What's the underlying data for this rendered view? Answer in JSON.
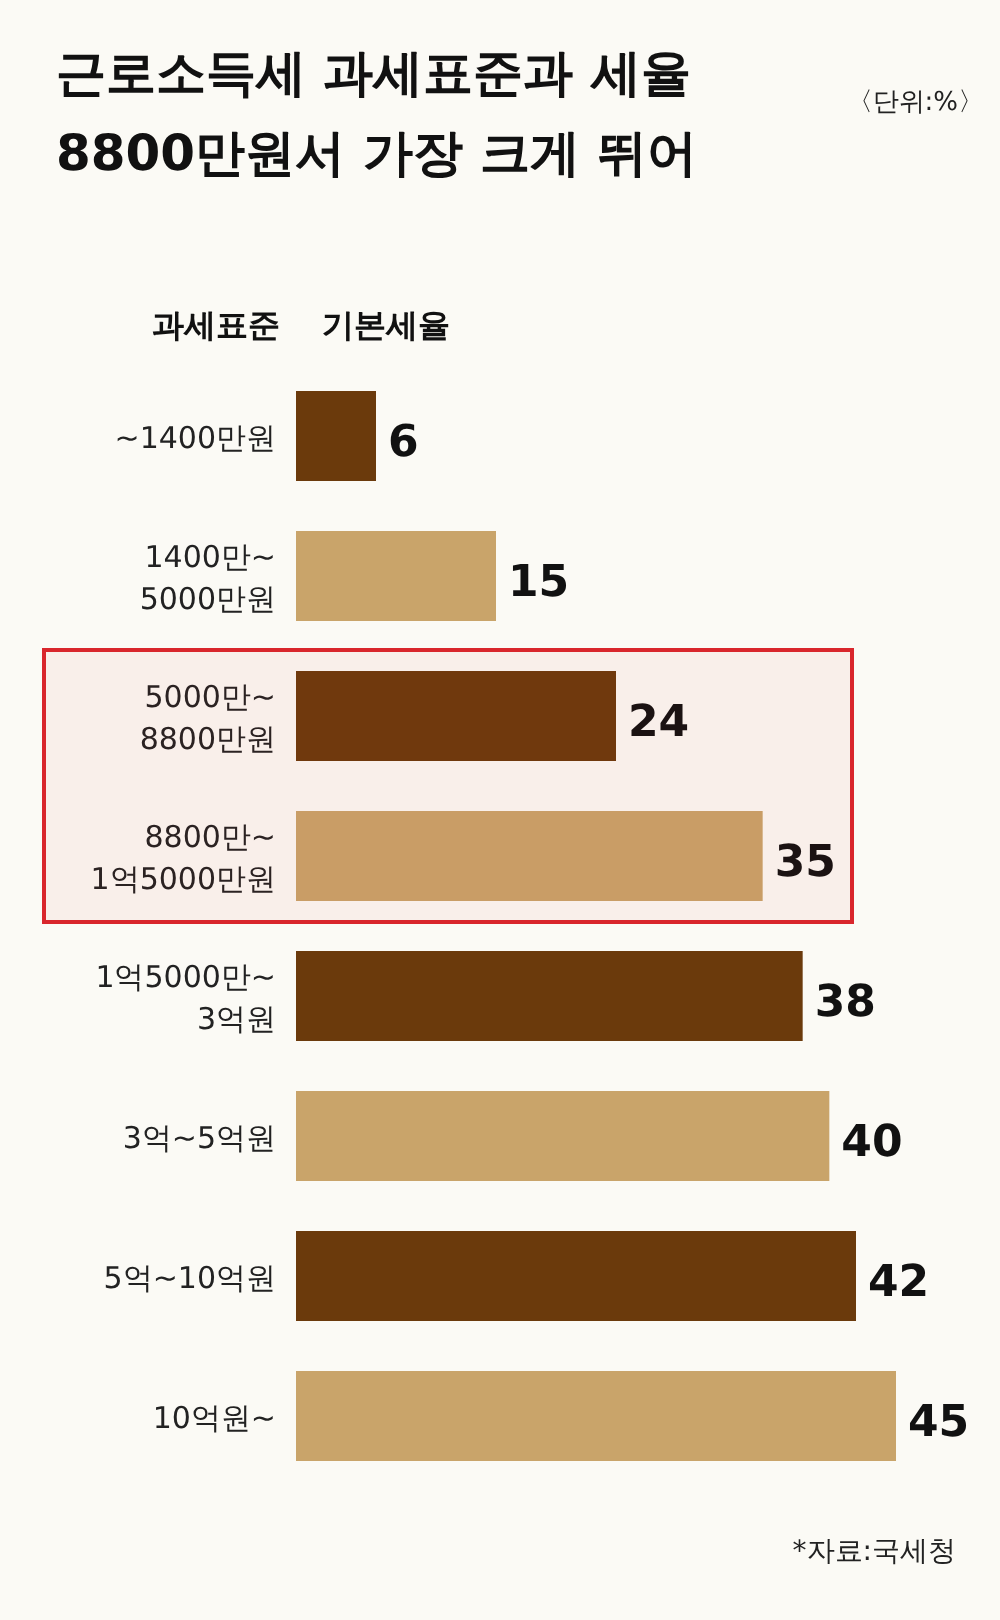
{
  "chart_data": {
    "type": "bar",
    "orientation": "horizontal",
    "title": "근로소득세 과세표준과 세율\n8800만원서 가장 크게 뛰어",
    "ylabel": "과세표준",
    "xlabel": "기본세율",
    "annotations": [
      "〈단위:%〉",
      "*자료:국세청"
    ],
    "categories": [
      "~1400만원",
      "1400만~\n5000만원",
      "5000만~\n8800만원",
      "8800만~\n1억5000만원",
      "1억5000만~\n3억원",
      "3억~5억원",
      "5억~10억원",
      "10억원~"
    ],
    "values": [
      6,
      15,
      24,
      35,
      38,
      40,
      42,
      45
    ],
    "colors": [
      "#6b3a0c",
      "#c9a46a",
      "#6b3a0c",
      "#c9a46a",
      "#6b3a0c",
      "#c9a46a",
      "#6b3a0c",
      "#c9a46a"
    ],
    "data_labels": true,
    "bands": [
      {
        "axis": "y",
        "from": "5000만~\n8800만원",
        "to": "8800만~\n1억5000만원",
        "color": "#d9262c"
      }
    ]
  }
}
